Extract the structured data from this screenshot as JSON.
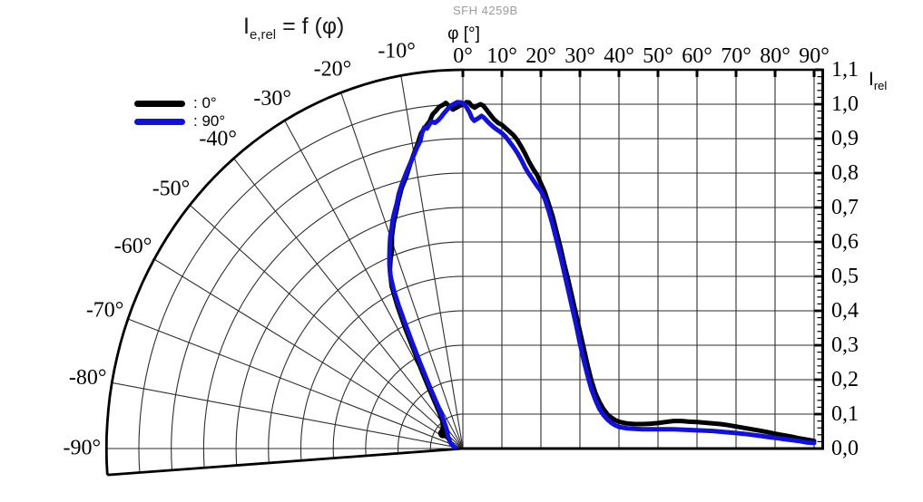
{
  "title": {
    "symbol": "I",
    "subscript": "e,rel",
    "expression": " = f (φ)"
  },
  "watermark": "SFH 4259B",
  "x_axis_label": "φ [°]",
  "y_axis_label": {
    "symbol": "I",
    "subscript": "rel"
  },
  "chart_data": {
    "type": "line",
    "layout": "half-polar-left-cartesian-right",
    "grid": "on",
    "legend_position": "top-left-inside",
    "x_axis": {
      "label": "φ [°]",
      "min": 0,
      "max": 90,
      "tick_step": 10,
      "tick_labels": [
        "0°",
        "10°",
        "20°",
        "30°",
        "40°",
        "50°",
        "60°",
        "70°",
        "80°",
        "90°"
      ]
    },
    "polar_axis": {
      "min": -90,
      "max": 0,
      "tick_step": 10,
      "boundary_angle": -94,
      "tick_labels": [
        "-10°",
        "-20°",
        "-30°",
        "-40°",
        "-50°",
        "-60°",
        "-70°",
        "-80°",
        "-90°"
      ],
      "tick_angles": [
        -10,
        -20,
        -30,
        -40,
        -50,
        -60,
        -70,
        -80,
        -90
      ]
    },
    "y_axis": {
      "label": "Irel",
      "min": 0,
      "max": 1.1,
      "tick_step": 0.1,
      "minor_tick_step": 0.02,
      "tick_labels": [
        "0,0",
        "0,1",
        "0,2",
        "0,3",
        "0,4",
        "0,5",
        "0,6",
        "0,7",
        "0,8",
        "0,9",
        "1,0",
        "1,1"
      ]
    },
    "series": [
      {
        "name": ": 0°",
        "color": "#000000",
        "end_blob": {
          "phi": -54,
          "i": 0.075
        },
        "points": [
          [
            -58,
            0.05
          ],
          [
            -54,
            0.072
          ],
          [
            -50,
            0.08
          ],
          [
            -45,
            0.088
          ],
          [
            -40,
            0.096
          ],
          [
            -37,
            0.11
          ],
          [
            -35,
            0.125
          ],
          [
            -33,
            0.152
          ],
          [
            -31,
            0.2
          ],
          [
            -29.5,
            0.252
          ],
          [
            -28,
            0.32
          ],
          [
            -27,
            0.39
          ],
          [
            -26,
            0.46
          ],
          [
            -25,
            0.52
          ],
          [
            -23.5,
            0.565
          ],
          [
            -22,
            0.595
          ],
          [
            -21,
            0.612
          ],
          [
            -19.5,
            0.655
          ],
          [
            -18,
            0.69
          ],
          [
            -17,
            0.71
          ],
          [
            -15.5,
            0.745
          ],
          [
            -14,
            0.78
          ],
          [
            -12.5,
            0.808
          ],
          [
            -11,
            0.845
          ],
          [
            -10,
            0.87
          ],
          [
            -9,
            0.895
          ],
          [
            -8,
            0.925
          ],
          [
            -7,
            0.942
          ],
          [
            -6.2,
            0.955
          ],
          [
            -5.5,
            0.975
          ],
          [
            -4.8,
            0.985
          ],
          [
            -4.2,
            0.995
          ],
          [
            -3.5,
            1.0
          ],
          [
            -3,
            1.005
          ],
          [
            -2.4,
            0.995
          ],
          [
            -1.8,
            0.985
          ],
          [
            -1.2,
            0.99
          ],
          [
            -0.5,
            0.996
          ],
          [
            0.3,
            1.0
          ],
          [
            0.9,
            1.006
          ],
          [
            1.6,
            1.005
          ],
          [
            2.2,
            0.996
          ],
          [
            3,
            0.99
          ],
          [
            3.8,
            0.996
          ],
          [
            4.5,
            1.0
          ],
          [
            5.2,
            0.996
          ],
          [
            6,
            0.985
          ],
          [
            7,
            0.97
          ],
          [
            8,
            0.956
          ],
          [
            9,
            0.946
          ],
          [
            10,
            0.94
          ],
          [
            11,
            0.93
          ],
          [
            12,
            0.92
          ],
          [
            13,
            0.91
          ],
          [
            14,
            0.895
          ],
          [
            15,
            0.876
          ],
          [
            16,
            0.855
          ],
          [
            17,
            0.832
          ],
          [
            18,
            0.812
          ],
          [
            19,
            0.795
          ],
          [
            20,
            0.77
          ],
          [
            21,
            0.745
          ],
          [
            22,
            0.71
          ],
          [
            23,
            0.675
          ],
          [
            24,
            0.63
          ],
          [
            25,
            0.585
          ],
          [
            26,
            0.535
          ],
          [
            27,
            0.49
          ],
          [
            28,
            0.44
          ],
          [
            29,
            0.39
          ],
          [
            30,
            0.34
          ],
          [
            31,
            0.29
          ],
          [
            32,
            0.24
          ],
          [
            33,
            0.195
          ],
          [
            34,
            0.16
          ],
          [
            35,
            0.135
          ],
          [
            36,
            0.115
          ],
          [
            37,
            0.1
          ],
          [
            38,
            0.09
          ],
          [
            39,
            0.083
          ],
          [
            40,
            0.078
          ],
          [
            42,
            0.073
          ],
          [
            44,
            0.071
          ],
          [
            46,
            0.071
          ],
          [
            48,
            0.072
          ],
          [
            50,
            0.074
          ],
          [
            52,
            0.077
          ],
          [
            54,
            0.08
          ],
          [
            56,
            0.08
          ],
          [
            58,
            0.078
          ],
          [
            60,
            0.077
          ],
          [
            62,
            0.075
          ],
          [
            64,
            0.073
          ],
          [
            66,
            0.071
          ],
          [
            68,
            0.068
          ],
          [
            70,
            0.064
          ],
          [
            72,
            0.06
          ],
          [
            74,
            0.056
          ],
          [
            76,
            0.052
          ],
          [
            78,
            0.048
          ],
          [
            80,
            0.043
          ],
          [
            82,
            0.039
          ],
          [
            84,
            0.035
          ],
          [
            86,
            0.03
          ],
          [
            88,
            0.026
          ],
          [
            90,
            0.022
          ]
        ]
      },
      {
        "name": ": 90°",
        "color": "#1010e0",
        "points": [
          [
            -82,
            0.025
          ],
          [
            -76,
            0.031
          ],
          [
            -70,
            0.038
          ],
          [
            -65,
            0.043
          ],
          [
            -60,
            0.048
          ],
          [
            -55,
            0.054
          ],
          [
            -50,
            0.061
          ],
          [
            -45,
            0.068
          ],
          [
            -42,
            0.075
          ],
          [
            -40,
            0.082
          ],
          [
            -38,
            0.09
          ],
          [
            -36,
            0.101
          ],
          [
            -34,
            0.116
          ],
          [
            -32.5,
            0.135
          ],
          [
            -31,
            0.165
          ],
          [
            -30,
            0.195
          ],
          [
            -29,
            0.23
          ],
          [
            -28,
            0.28
          ],
          [
            -27,
            0.34
          ],
          [
            -26.2,
            0.4
          ],
          [
            -25.5,
            0.46
          ],
          [
            -24.8,
            0.51
          ],
          [
            -24,
            0.55
          ],
          [
            -23,
            0.58
          ],
          [
            -22,
            0.605
          ],
          [
            -21,
            0.63
          ],
          [
            -20,
            0.655
          ],
          [
            -19,
            0.675
          ],
          [
            -18,
            0.7
          ],
          [
            -17,
            0.72
          ],
          [
            -16,
            0.74
          ],
          [
            -15,
            0.765
          ],
          [
            -14,
            0.786
          ],
          [
            -13,
            0.806
          ],
          [
            -12,
            0.826
          ],
          [
            -11,
            0.846
          ],
          [
            -10.3,
            0.86
          ],
          [
            -9.6,
            0.876
          ],
          [
            -9,
            0.89
          ],
          [
            -8.4,
            0.902
          ],
          [
            -7.8,
            0.926
          ],
          [
            -7.3,
            0.94
          ],
          [
            -6.8,
            0.936
          ],
          [
            -6.3,
            0.946
          ],
          [
            -5.8,
            0.955
          ],
          [
            -5.2,
            0.95
          ],
          [
            -4.6,
            0.956
          ],
          [
            -4,
            0.965
          ],
          [
            -3.4,
            0.976
          ],
          [
            -2.8,
            0.986
          ],
          [
            -2.2,
            0.996
          ],
          [
            -1.6,
            1.001
          ],
          [
            -1,
            1.006
          ],
          [
            -0.3,
            1.005
          ],
          [
            0.4,
            1.0
          ],
          [
            1,
            0.99
          ],
          [
            1.7,
            0.976
          ],
          [
            2.3,
            0.96
          ],
          [
            2.9,
            0.952
          ],
          [
            3.5,
            0.956
          ],
          [
            4.2,
            0.961
          ],
          [
            4.8,
            0.966
          ],
          [
            5.5,
            0.96
          ],
          [
            6.2,
            0.951
          ],
          [
            7,
            0.942
          ],
          [
            8,
            0.932
          ],
          [
            9,
            0.924
          ],
          [
            10,
            0.916
          ],
          [
            11,
            0.905
          ],
          [
            12,
            0.89
          ],
          [
            13,
            0.875
          ],
          [
            14,
            0.858
          ],
          [
            15,
            0.838
          ],
          [
            16,
            0.815
          ],
          [
            16.8,
            0.8
          ],
          [
            17.4,
            0.79
          ],
          [
            18.2,
            0.776
          ],
          [
            19,
            0.763
          ],
          [
            20,
            0.748
          ],
          [
            21,
            0.725
          ],
          [
            22,
            0.69
          ],
          [
            23,
            0.65
          ],
          [
            24,
            0.605
          ],
          [
            25,
            0.56
          ],
          [
            26,
            0.51
          ],
          [
            27,
            0.46
          ],
          [
            28,
            0.41
          ],
          [
            29,
            0.36
          ],
          [
            30,
            0.305
          ],
          [
            31,
            0.255
          ],
          [
            32,
            0.21
          ],
          [
            33,
            0.17
          ],
          [
            34,
            0.14
          ],
          [
            35,
            0.115
          ],
          [
            36,
            0.098
          ],
          [
            37,
            0.085
          ],
          [
            38,
            0.075
          ],
          [
            39,
            0.068
          ],
          [
            40,
            0.063
          ],
          [
            42,
            0.059
          ],
          [
            44,
            0.057
          ],
          [
            46,
            0.056
          ],
          [
            48,
            0.056
          ],
          [
            50,
            0.056
          ],
          [
            52,
            0.056
          ],
          [
            54,
            0.056
          ],
          [
            56,
            0.055
          ],
          [
            58,
            0.054
          ],
          [
            60,
            0.053
          ],
          [
            62,
            0.052
          ],
          [
            64,
            0.051
          ],
          [
            66,
            0.049
          ],
          [
            68,
            0.047
          ],
          [
            70,
            0.045
          ],
          [
            72,
            0.043
          ],
          [
            74,
            0.04
          ],
          [
            76,
            0.037
          ],
          [
            78,
            0.034
          ],
          [
            80,
            0.031
          ],
          [
            82,
            0.028
          ],
          [
            84,
            0.025
          ],
          [
            86,
            0.022
          ],
          [
            88,
            0.018
          ],
          [
            90,
            0.016
          ]
        ]
      }
    ],
    "colors": {
      "grid": "#2e2e2e",
      "axis": "#000000",
      "watermark": "#9c9c9c"
    }
  }
}
